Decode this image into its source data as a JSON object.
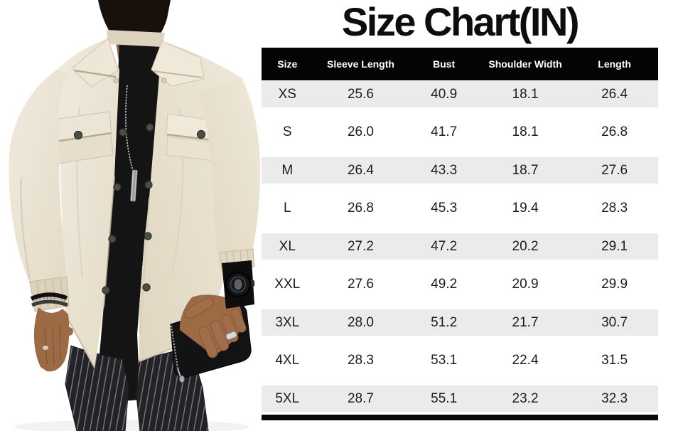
{
  "chart_data": {
    "type": "table",
    "title": "Size Chart(IN)",
    "units": "IN",
    "columns": [
      "Size",
      "Sleeve Length",
      "Bust",
      "Shoulder Width",
      "Length"
    ],
    "rows": [
      {
        "size": "XS",
        "sleeve_length": "25.6",
        "bust": "40.9",
        "shoulder_width": "18.1",
        "length": "26.4"
      },
      {
        "size": "S",
        "sleeve_length": "26.0",
        "bust": "41.7",
        "shoulder_width": "18.1",
        "length": "26.8"
      },
      {
        "size": "M",
        "sleeve_length": "26.4",
        "bust": "43.3",
        "shoulder_width": "18.7",
        "length": "27.6"
      },
      {
        "size": "L",
        "sleeve_length": "26.8",
        "bust": "45.3",
        "shoulder_width": "19.4",
        "length": "28.3"
      },
      {
        "size": "XL",
        "sleeve_length": "27.2",
        "bust": "47.2",
        "shoulder_width": "20.2",
        "length": "29.1"
      },
      {
        "size": "XXL",
        "sleeve_length": "27.6",
        "bust": "49.2",
        "shoulder_width": "20.9",
        "length": "29.9"
      },
      {
        "size": "3XL",
        "sleeve_length": "28.0",
        "bust": "51.2",
        "shoulder_width": "21.7",
        "length": "30.7"
      },
      {
        "size": "4XL",
        "sleeve_length": "28.3",
        "bust": "53.1",
        "shoulder_width": "22.4",
        "length": "31.5"
      },
      {
        "size": "5XL",
        "sleeve_length": "28.7",
        "bust": "55.1",
        "shoulder_width": "23.2",
        "length": "32.3"
      }
    ]
  },
  "colors": {
    "title_text": "#0d0d0d",
    "header_bg": "#040404",
    "header_text": "#ffffff",
    "row_bg": "#ffffff",
    "row_alt_bg": "#ebebeb",
    "cell_text": "#1d1d1f",
    "jacket": "#e9e1d0",
    "tshirt": "#141414",
    "pants": "#232327",
    "skin": "#9c6a45",
    "snap_button": "#4a4f44"
  }
}
